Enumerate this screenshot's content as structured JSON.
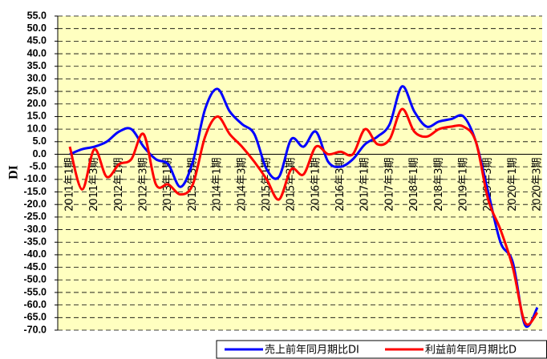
{
  "chart_data": {
    "type": "line",
    "ylabel": "DI",
    "categories": [
      "2011年1期",
      null,
      "2011年3期",
      null,
      "2012年1期",
      null,
      "2012年3期",
      null,
      "2013年1期",
      null,
      "2013年3期",
      null,
      "2014年1期",
      null,
      "2014年3期",
      null,
      "2015年1期",
      null,
      "2015年3期",
      null,
      "2016年1期",
      null,
      "2016年3期",
      null,
      "2017年1期",
      null,
      "2017年3期",
      null,
      "2018年1期",
      null,
      "2018年3期",
      null,
      "2019年1期",
      null,
      "2019年3期",
      null,
      "2020年1期",
      null,
      "2020年3期"
    ],
    "series": [
      {
        "name": "売上前年同月期比DI",
        "color": "#0000ff",
        "values": [
          0,
          2,
          3,
          5,
          9,
          10,
          3,
          -2,
          -4,
          -13,
          -3,
          18,
          26,
          17,
          12,
          8,
          -6,
          -9,
          6,
          3,
          9,
          -3,
          -5,
          -2,
          4,
          7,
          12,
          27,
          17,
          11,
          13,
          14,
          15,
          5,
          -15,
          -35,
          -43,
          -68,
          -61
        ]
      },
      {
        "name": "利益前年同月期比D",
        "color": "#ff0000",
        "values": [
          3,
          -14,
          2,
          -9,
          -4,
          -2,
          8,
          -12,
          -12,
          -16,
          -12,
          7,
          15,
          8,
          3,
          -3,
          -10,
          -18,
          -6,
          -8,
          3,
          0,
          1,
          0,
          10,
          4,
          6,
          18,
          9,
          7,
          10,
          11,
          11,
          5,
          -18,
          -30,
          -45,
          -67,
          -63
        ]
      }
    ],
    "ylim": [
      -70,
      55
    ],
    "yticks": [
      {
        "value": 55,
        "label": "55.0"
      },
      {
        "value": 50,
        "label": "50.0"
      },
      {
        "value": 45,
        "label": "45.0"
      },
      {
        "value": 40,
        "label": "40.0"
      },
      {
        "value": 35,
        "label": "35.0"
      },
      {
        "value": 30,
        "label": "30.0"
      },
      {
        "value": 25,
        "label": "25.0"
      },
      {
        "value": 20,
        "label": "20.0"
      },
      {
        "value": 15,
        "label": "15.0"
      },
      {
        "value": 10,
        "label": "10.0"
      },
      {
        "value": 5,
        "label": "5.0"
      },
      {
        "value": 0,
        "label": "0.0"
      },
      {
        "value": -5,
        "label": "-5.0"
      },
      {
        "value": -10,
        "label": "-10.0"
      },
      {
        "value": -15,
        "label": "-15.0"
      },
      {
        "value": -20,
        "label": "-20.0"
      },
      {
        "value": -25,
        "label": "-25.0"
      },
      {
        "value": -30,
        "label": "-30.0"
      },
      {
        "value": -35,
        "label": "-35.0"
      },
      {
        "value": -40,
        "label": "-40.0"
      },
      {
        "value": -45,
        "label": "-45.0"
      },
      {
        "value": -50,
        "label": "-50.0"
      },
      {
        "value": -55,
        "label": "-55.0"
      },
      {
        "value": -60,
        "label": "-60.0"
      },
      {
        "value": -65,
        "label": "-65.0"
      },
      {
        "value": -70,
        "label": "-70.0"
      }
    ],
    "grid": true,
    "background": "#ffffc0",
    "legend": "bottom-right"
  }
}
